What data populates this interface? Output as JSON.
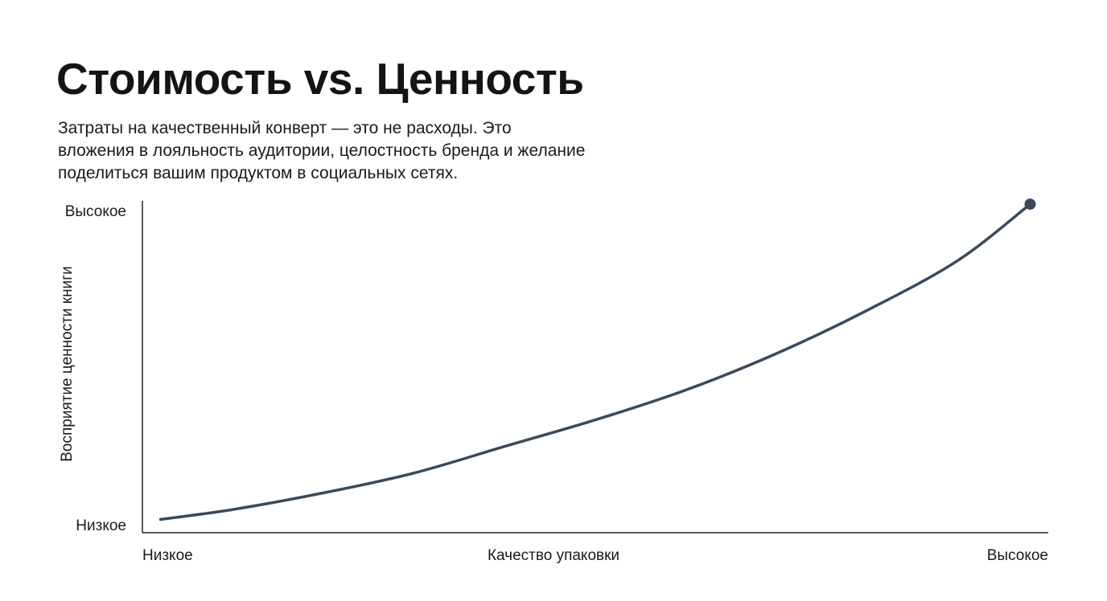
{
  "header": {
    "title": "Стоимость vs. Ценность",
    "subtitle_lines": [
      "Затраты на качественный конверт — это не расходы. Это",
      "вложения в лояльность аудитории, целостность бренда и желание",
      "поделиться вашим продуктом в социальных сетях."
    ]
  },
  "colors": {
    "curve": "#3b4a5a",
    "axis": "#222222"
  },
  "chart_data": {
    "type": "line",
    "title": "Стоимость vs. Ценность",
    "xlabel": "Качество упаковки",
    "ylabel": "Восприятие ценности книги",
    "x_tick_labels": [
      "Низкое",
      "Высокое"
    ],
    "y_tick_labels": [
      "Низкое",
      "Высокое"
    ],
    "xlim": [
      0,
      1
    ],
    "ylim": [
      0,
      1
    ],
    "grid": false,
    "legend": "none",
    "series": [
      {
        "x": [
          0.02,
          0.1,
          0.2,
          0.3,
          0.4,
          0.5,
          0.6,
          0.7,
          0.8,
          0.9,
          0.98
        ],
        "values": [
          0.04,
          0.07,
          0.12,
          0.18,
          0.26,
          0.34,
          0.43,
          0.54,
          0.67,
          0.82,
          0.99
        ]
      }
    ],
    "marker_at_end": true
  }
}
